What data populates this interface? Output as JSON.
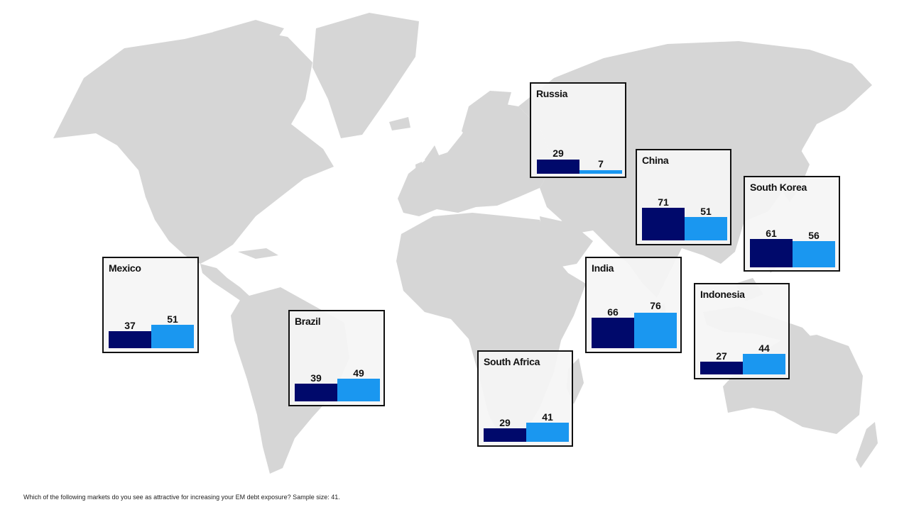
{
  "colors": {
    "land": "#d6d6d6",
    "series_dark": "#00096b",
    "series_light": "#1a97f0",
    "box_border": "#111111"
  },
  "chart_data": {
    "type": "bar",
    "categories": [
      "Russia",
      "China",
      "South Korea",
      "Mexico",
      "India",
      "Indonesia",
      "Brazil",
      "South Africa"
    ],
    "series": [
      {
        "values": [
          29,
          71,
          61,
          37,
          66,
          27,
          39,
          29
        ]
      },
      {
        "values": [
          7,
          51,
          56,
          51,
          76,
          44,
          49,
          41
        ]
      }
    ]
  },
  "markets": [
    {
      "id": "russia",
      "name": "Russia",
      "v1": 29,
      "v2": 7
    },
    {
      "id": "china",
      "name": "China",
      "v1": 71,
      "v2": 51
    },
    {
      "id": "south-korea",
      "name": "South Korea",
      "v1": 61,
      "v2": 56
    },
    {
      "id": "mexico",
      "name": "Mexico",
      "v1": 37,
      "v2": 51
    },
    {
      "id": "india",
      "name": "India",
      "v1": 66,
      "v2": 76
    },
    {
      "id": "indonesia",
      "name": "Indonesia",
      "v1": 27,
      "v2": 44
    },
    {
      "id": "brazil",
      "name": "Brazil",
      "v1": 39,
      "v2": 49
    },
    {
      "id": "south-africa",
      "name": "South Africa",
      "v1": 29,
      "v2": 41
    }
  ],
  "footnote": "Which of the following markets do you see as attractive for increasing your EM debt exposure? Sample size: 41."
}
